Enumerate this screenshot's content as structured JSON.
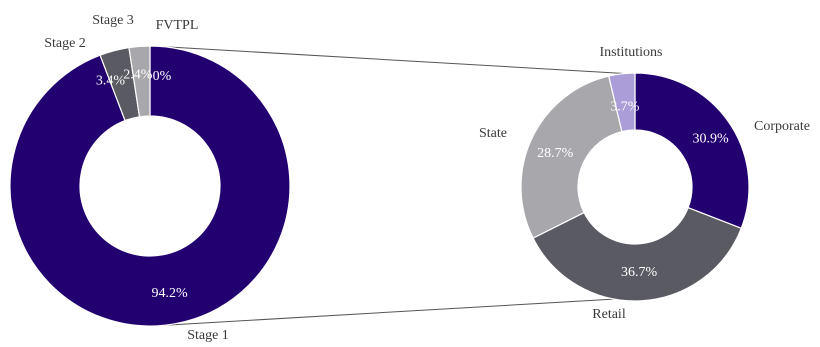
{
  "chart_data": [
    {
      "type": "pie",
      "title": "",
      "categories": [
        "Stage 1",
        "Stage 2",
        "Stage 3",
        "FVTPL"
      ],
      "values": [
        94.2,
        3.4,
        2.4,
        0
      ],
      "value_labels": [
        "94.2%",
        "3.4%",
        "2.4%",
        "0%"
      ],
      "colors": [
        "#220070",
        "#5a5a62",
        "#a8a8ac",
        "#c8b8e8"
      ]
    },
    {
      "type": "pie",
      "title": "",
      "categories": [
        "Corporate",
        "Retail",
        "State",
        "Institutions"
      ],
      "values": [
        30.9,
        36.7,
        28.7,
        3.7
      ],
      "value_labels": [
        "30.9%",
        "36.7%",
        "28.7%",
        "3.7%"
      ],
      "colors": [
        "#220070",
        "#5a5a62",
        "#a8a8ac",
        "#ab9dd8"
      ]
    }
  ]
}
